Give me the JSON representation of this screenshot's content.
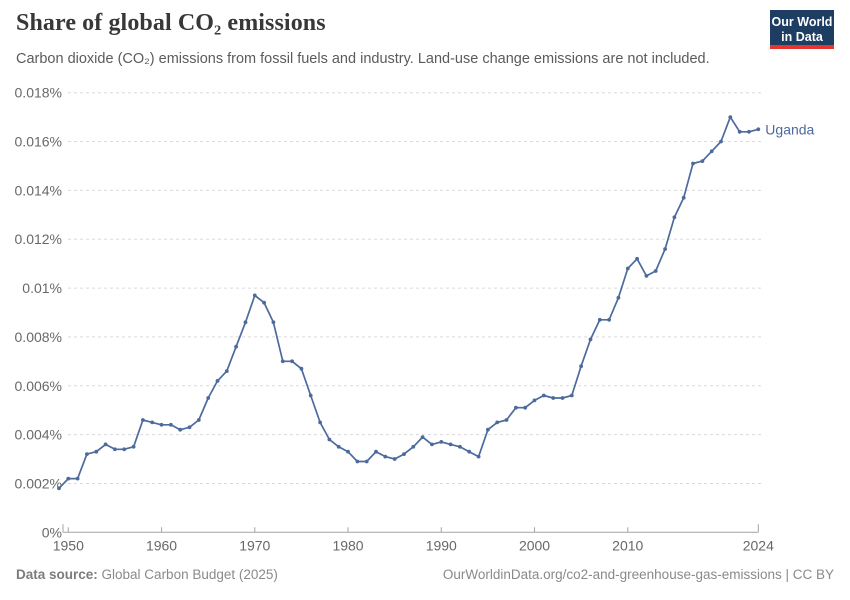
{
  "header": {
    "title": "Share of global CO₂ emissions",
    "subtitle": "Carbon dioxide (CO₂) emissions from fossil fuels and industry. Land-use change emissions are not included.",
    "logo": {
      "line1": "Our World",
      "line2": "in Data"
    }
  },
  "footer": {
    "source_label": "Data source:",
    "source_value": " Global Carbon Budget (2025)",
    "link": "OurWorldinData.org/co2-and-greenhouse-gas-emissions | CC BY"
  },
  "colors": {
    "line": "#4C6A9C",
    "logo_bg": "#1d3d63",
    "logo_accent": "#e5352c",
    "grid": "#dadada",
    "axis": "#a3a3a3",
    "tick_text": "#686868"
  },
  "chart_data": {
    "type": "line",
    "title": "Share of global CO₂ emissions",
    "entity": "Uganda",
    "unit": "%",
    "grid": "horizontal-dashed",
    "legend_position": "end-of-line",
    "ylim": [
      0,
      0.018
    ],
    "x": [
      1949,
      1950,
      1951,
      1952,
      1953,
      1954,
      1955,
      1956,
      1957,
      1958,
      1959,
      1960,
      1961,
      1962,
      1963,
      1964,
      1965,
      1966,
      1967,
      1968,
      1969,
      1970,
      1971,
      1972,
      1973,
      1974,
      1975,
      1976,
      1977,
      1978,
      1979,
      1980,
      1981,
      1982,
      1983,
      1984,
      1985,
      1986,
      1987,
      1988,
      1989,
      1990,
      1991,
      1992,
      1993,
      1994,
      1995,
      1996,
      1997,
      1998,
      1999,
      2000,
      2001,
      2002,
      2003,
      2004,
      2005,
      2006,
      2007,
      2008,
      2009,
      2010,
      2011,
      2012,
      2013,
      2014,
      2015,
      2016,
      2017,
      2018,
      2019,
      2020,
      2021,
      2022,
      2023,
      2024
    ],
    "values": [
      0.0018,
      0.0022,
      0.0022,
      0.0032,
      0.0033,
      0.0036,
      0.0034,
      0.0034,
      0.0035,
      0.0046,
      0.0045,
      0.0044,
      0.0044,
      0.0042,
      0.0043,
      0.0046,
      0.0055,
      0.0062,
      0.0066,
      0.0076,
      0.0086,
      0.0097,
      0.0094,
      0.0086,
      0.007,
      0.007,
      0.0067,
      0.0056,
      0.0045,
      0.0038,
      0.0035,
      0.0033,
      0.0029,
      0.0029,
      0.0033,
      0.0031,
      0.003,
      0.0032,
      0.0035,
      0.0039,
      0.0036,
      0.0037,
      0.0036,
      0.0035,
      0.0033,
      0.0031,
      0.0042,
      0.0045,
      0.0046,
      0.0051,
      0.0051,
      0.0054,
      0.0056,
      0.0055,
      0.0055,
      0.0056,
      0.0068,
      0.0079,
      0.0087,
      0.0087,
      0.0096,
      0.0108,
      0.0112,
      0.0105,
      0.0107,
      0.0116,
      0.0129,
      0.0137,
      0.0151,
      0.0152,
      0.0156,
      0.016,
      0.017,
      0.0164,
      0.0164,
      0.0165
    ],
    "yticks": [
      {
        "v": 0,
        "label": "0%"
      },
      {
        "v": 0.002,
        "label": "0.002%"
      },
      {
        "v": 0.004,
        "label": "0.004%"
      },
      {
        "v": 0.006,
        "label": "0.006%"
      },
      {
        "v": 0.008,
        "label": "0.008%"
      },
      {
        "v": 0.01,
        "label": "0.01%"
      },
      {
        "v": 0.012,
        "label": "0.012%"
      },
      {
        "v": 0.014,
        "label": "0.014%"
      },
      {
        "v": 0.016,
        "label": "0.016%"
      },
      {
        "v": 0.018,
        "label": "0.018%"
      }
    ],
    "xticks": [
      {
        "year": 1950,
        "label": "1950"
      },
      {
        "year": 1960,
        "label": "1960"
      },
      {
        "year": 1970,
        "label": "1970"
      },
      {
        "year": 1980,
        "label": "1980"
      },
      {
        "year": 1990,
        "label": "1990"
      },
      {
        "year": 2000,
        "label": "2000"
      },
      {
        "year": 2010,
        "label": "2010"
      },
      {
        "year": 2024,
        "label": "2024"
      }
    ]
  }
}
